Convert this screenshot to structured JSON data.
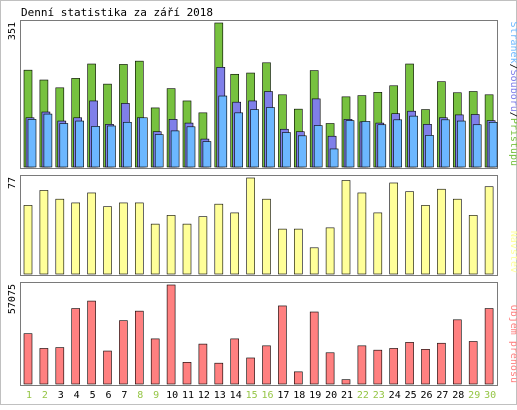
{
  "title": "Denní statistika za září 2018",
  "colors": {
    "background": "#ffffff",
    "border": "#7a7a7a",
    "hits": "#77c13f",
    "files": "#7f7fe9",
    "pages": "#6cb7ff",
    "visits": "#ffff99",
    "kbytes": "#ff8080",
    "weekday_label": "#000000",
    "weekend_label": "#94c544"
  },
  "chart_data": [
    {
      "type": "bar",
      "name": "traffic",
      "max_label": "351",
      "ylim": [
        0,
        351
      ],
      "legend": [
        {
          "text": "Stránek",
          "color": "#6cb7ff"
        },
        {
          "text": "Souborů",
          "color": "#7f7fe9"
        },
        {
          "text": "Přístupů",
          "color": "#77c13f"
        }
      ],
      "separator": "/",
      "categories": [
        "1",
        "2",
        "3",
        "4",
        "5",
        "6",
        "7",
        "8",
        "9",
        "10",
        "11",
        "12",
        "13",
        "14",
        "15",
        "16",
        "17",
        "18",
        "19",
        "20",
        "21",
        "22",
        "23",
        "24",
        "25",
        "26",
        "27",
        "28",
        "29",
        "30"
      ],
      "series": [
        {
          "name": "Přístupů",
          "values": [
            236,
            212,
            193,
            216,
            251,
            202,
            250,
            258,
            144,
            191,
            161,
            132,
            351,
            226,
            229,
            254,
            176,
            141,
            235,
            106,
            171,
            174,
            182,
            198,
            251,
            140,
            208,
            181,
            184,
            176
          ]
        },
        {
          "name": "Souborů",
          "values": [
            120,
            134,
            112,
            120,
            161,
            104,
            155,
            120,
            86,
            116,
            107,
            68,
            243,
            158,
            161,
            184,
            92,
            86,
            166,
            75,
            116,
            110,
            107,
            130,
            136,
            104,
            120,
            127,
            128,
            113
          ]
        },
        {
          "name": "Stránek",
          "values": [
            116,
            129,
            106,
            112,
            99,
            100,
            109,
            120,
            79,
            88,
            98,
            62,
            173,
            132,
            140,
            145,
            84,
            76,
            101,
            44,
            113,
            111,
            103,
            115,
            124,
            77,
            115,
            112,
            103,
            109
          ]
        }
      ]
    },
    {
      "type": "bar",
      "name": "visits",
      "max_label": "77",
      "ylim": [
        0,
        77
      ],
      "legend": [
        {
          "text": "Návštěv",
          "color": "#ffff99"
        }
      ],
      "categories": [
        "1",
        "2",
        "3",
        "4",
        "5",
        "6",
        "7",
        "8",
        "9",
        "10",
        "11",
        "12",
        "13",
        "14",
        "15",
        "16",
        "17",
        "18",
        "19",
        "20",
        "21",
        "22",
        "23",
        "24",
        "25",
        "26",
        "27",
        "28",
        "29",
        "30"
      ],
      "series": [
        {
          "name": "Návštěv",
          "values": [
            55,
            67,
            60,
            57,
            65,
            54,
            57,
            57,
            40,
            47,
            40,
            46,
            56,
            49,
            77,
            60,
            36,
            36,
            21,
            37,
            75,
            65,
            49,
            73,
            66,
            55,
            68,
            60,
            47,
            70
          ]
        }
      ]
    },
    {
      "type": "bar",
      "name": "kbytes",
      "max_label": "57075",
      "ylim": [
        0,
        57075
      ],
      "legend": [
        {
          "text": "Objem přenosu",
          "color": "#ff8080"
        }
      ],
      "categories": [
        "1",
        "2",
        "3",
        "4",
        "5",
        "6",
        "7",
        "8",
        "9",
        "10",
        "11",
        "12",
        "13",
        "14",
        "15",
        "16",
        "17",
        "18",
        "19",
        "20",
        "21",
        "22",
        "23",
        "24",
        "25",
        "26",
        "27",
        "28",
        "29",
        "30"
      ],
      "series": [
        {
          "name": "Objem přenosu",
          "values": [
            29000,
            20500,
            21000,
            43500,
            47800,
            19000,
            36500,
            42000,
            26000,
            57075,
            12500,
            23000,
            12000,
            26000,
            15000,
            22000,
            45000,
            7000,
            41500,
            18000,
            2500,
            22000,
            19500,
            20500,
            24000,
            20000,
            23500,
            37000,
            24500,
            43500
          ]
        }
      ]
    }
  ],
  "x_axis": {
    "labels": [
      "1",
      "2",
      "3",
      "4",
      "5",
      "6",
      "7",
      "8",
      "9",
      "10",
      "11",
      "12",
      "13",
      "14",
      "15",
      "16",
      "17",
      "18",
      "19",
      "20",
      "21",
      "22",
      "23",
      "24",
      "25",
      "26",
      "27",
      "28",
      "29",
      "30"
    ],
    "weekend": [
      true,
      true,
      false,
      false,
      false,
      false,
      false,
      true,
      true,
      false,
      false,
      false,
      false,
      false,
      true,
      true,
      false,
      false,
      false,
      false,
      false,
      true,
      true,
      false,
      false,
      false,
      false,
      false,
      true,
      true
    ]
  }
}
